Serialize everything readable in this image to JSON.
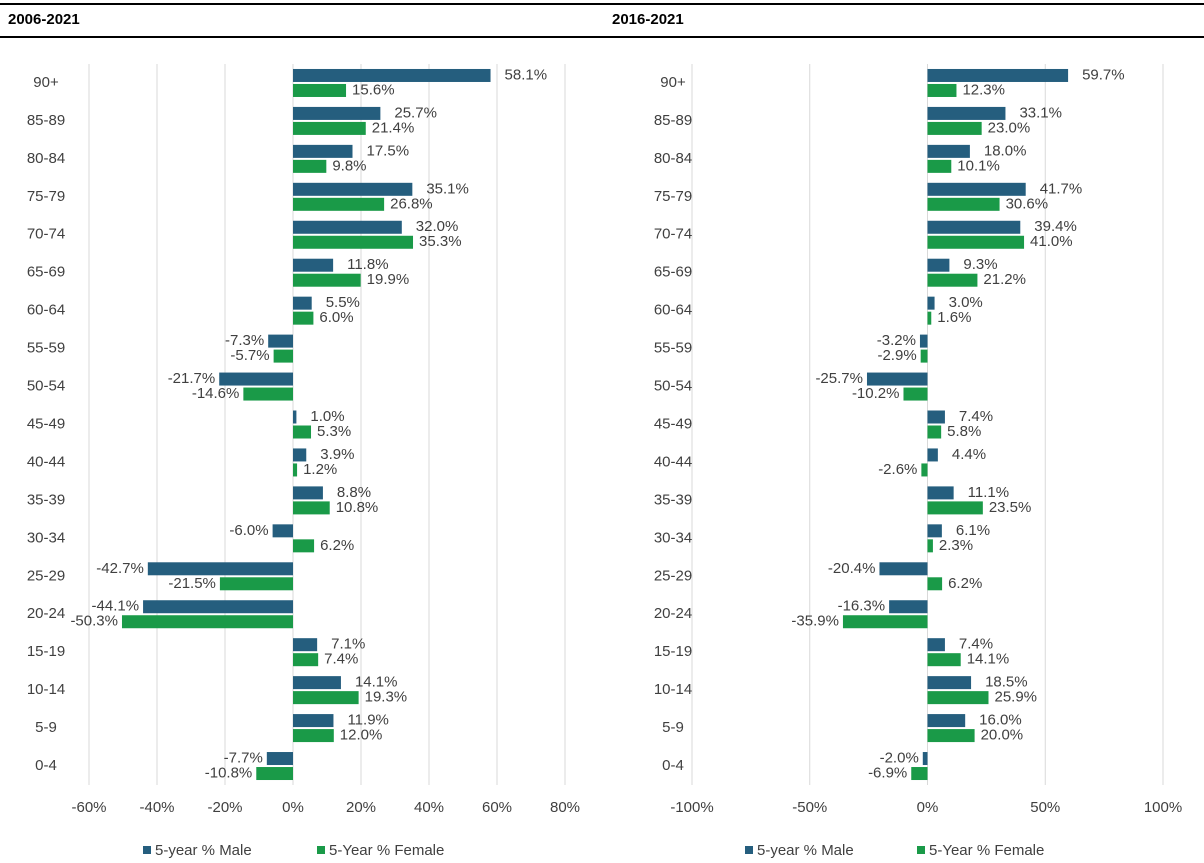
{
  "chart_data": [
    {
      "type": "bar",
      "orientation": "horizontal",
      "title": "2006-2021",
      "categories": [
        "90+",
        "85-89",
        "80-84",
        "75-79",
        "70-74",
        "65-69",
        "60-64",
        "55-59",
        "50-54",
        "45-49",
        "40-44",
        "35-39",
        "30-34",
        "25-29",
        "20-24",
        "15-19",
        "10-14",
        "5-9",
        "0-4"
      ],
      "series": [
        {
          "name": "5-year % Male",
          "color": "#255e7e",
          "values": [
            58.1,
            25.7,
            17.5,
            35.1,
            32.0,
            11.8,
            5.5,
            -7.3,
            -21.7,
            1.0,
            3.9,
            8.8,
            -6.0,
            -42.7,
            -44.1,
            7.1,
            14.1,
            11.9,
            -7.7
          ],
          "value_labels": [
            "58.1%",
            "25.7%",
            "17.5%",
            "35.1%",
            "32.0%",
            "11.8%",
            "5.5%",
            "-7.3%",
            "-21.7%",
            "1.0%",
            "3.9%",
            "8.8%",
            "-6.0%",
            "-42.7%",
            "-44.1%",
            "7.1%",
            "14.1%",
            "11.9%",
            "-7.7%"
          ]
        },
        {
          "name": "5-Year % Female",
          "color": "#1a9a48",
          "values": [
            15.6,
            21.4,
            9.8,
            26.8,
            35.3,
            19.9,
            6.0,
            -5.7,
            -14.6,
            5.3,
            1.2,
            10.8,
            6.2,
            -21.5,
            -50.3,
            7.4,
            19.3,
            12.0,
            -10.8
          ],
          "value_labels": [
            "15.6%",
            "21.4%",
            "9.8%",
            "26.8%",
            "35.3%",
            "19.9%",
            "6.0%",
            "-5.7%",
            "-14.6%",
            "5.3%",
            "1.2%",
            "10.8%",
            "6.2%",
            "-21.5%",
            "-50.3%",
            "7.4%",
            "19.3%",
            "12.0%",
            "-10.8%"
          ]
        }
      ],
      "xlim": [
        -60,
        80
      ],
      "xticks": [
        {
          "value": -60,
          "label": "-60%"
        },
        {
          "value": -40,
          "label": "-40%"
        },
        {
          "value": -20,
          "label": "-20%"
        },
        {
          "value": 0,
          "label": "0%"
        },
        {
          "value": 20,
          "label": "20%"
        },
        {
          "value": 40,
          "label": "40%"
        },
        {
          "value": 60,
          "label": "60%"
        },
        {
          "value": 80,
          "label": "80%"
        }
      ],
      "grid": true,
      "legend": "bottom"
    },
    {
      "type": "bar",
      "orientation": "horizontal",
      "title": "2016-2021",
      "categories": [
        "90+",
        "85-89",
        "80-84",
        "75-79",
        "70-74",
        "65-69",
        "60-64",
        "55-59",
        "50-54",
        "45-49",
        "40-44",
        "35-39",
        "30-34",
        "25-29",
        "20-24",
        "15-19",
        "10-14",
        "5-9",
        "0-4"
      ],
      "series": [
        {
          "name": "5-year % Male",
          "color": "#255e7e",
          "values": [
            59.7,
            33.1,
            18.0,
            41.7,
            39.4,
            9.3,
            3.0,
            -3.2,
            -25.7,
            7.4,
            4.4,
            11.1,
            6.1,
            -20.4,
            -16.3,
            7.4,
            18.5,
            16.0,
            -2.0
          ],
          "value_labels": [
            "59.7%",
            "33.1%",
            "18.0%",
            "41.7%",
            "39.4%",
            "9.3%",
            "3.0%",
            "-3.2%",
            "-25.7%",
            "7.4%",
            "4.4%",
            "11.1%",
            "6.1%",
            "-20.4%",
            "-16.3%",
            "7.4%",
            "18.5%",
            "16.0%",
            "-2.0%"
          ]
        },
        {
          "name": "5-Year % Female",
          "color": "#1a9a48",
          "values": [
            12.3,
            23.0,
            10.1,
            30.6,
            41.0,
            21.2,
            1.6,
            -2.9,
            -10.2,
            5.8,
            -2.6,
            23.5,
            2.3,
            6.2,
            -35.9,
            14.1,
            25.9,
            20.0,
            -6.9
          ],
          "value_labels": [
            "12.3%",
            "23.0%",
            "10.1%",
            "30.6%",
            "41.0%",
            "21.2%",
            "1.6%",
            "-2.9%",
            "-10.2%",
            "5.8%",
            "-2.6%",
            "23.5%",
            "2.3%",
            "6.2%",
            "-35.9%",
            "14.1%",
            "25.9%",
            "20.0%",
            "-6.9%"
          ]
        }
      ],
      "xlim": [
        -100,
        100
      ],
      "xticks": [
        {
          "value": -100,
          "label": "-100%"
        },
        {
          "value": -50,
          "label": "-50%"
        },
        {
          "value": 0,
          "label": "0%"
        },
        {
          "value": 50,
          "label": "50%"
        },
        {
          "value": 100,
          "label": "100%"
        }
      ],
      "grid": true,
      "legend": "bottom"
    }
  ]
}
